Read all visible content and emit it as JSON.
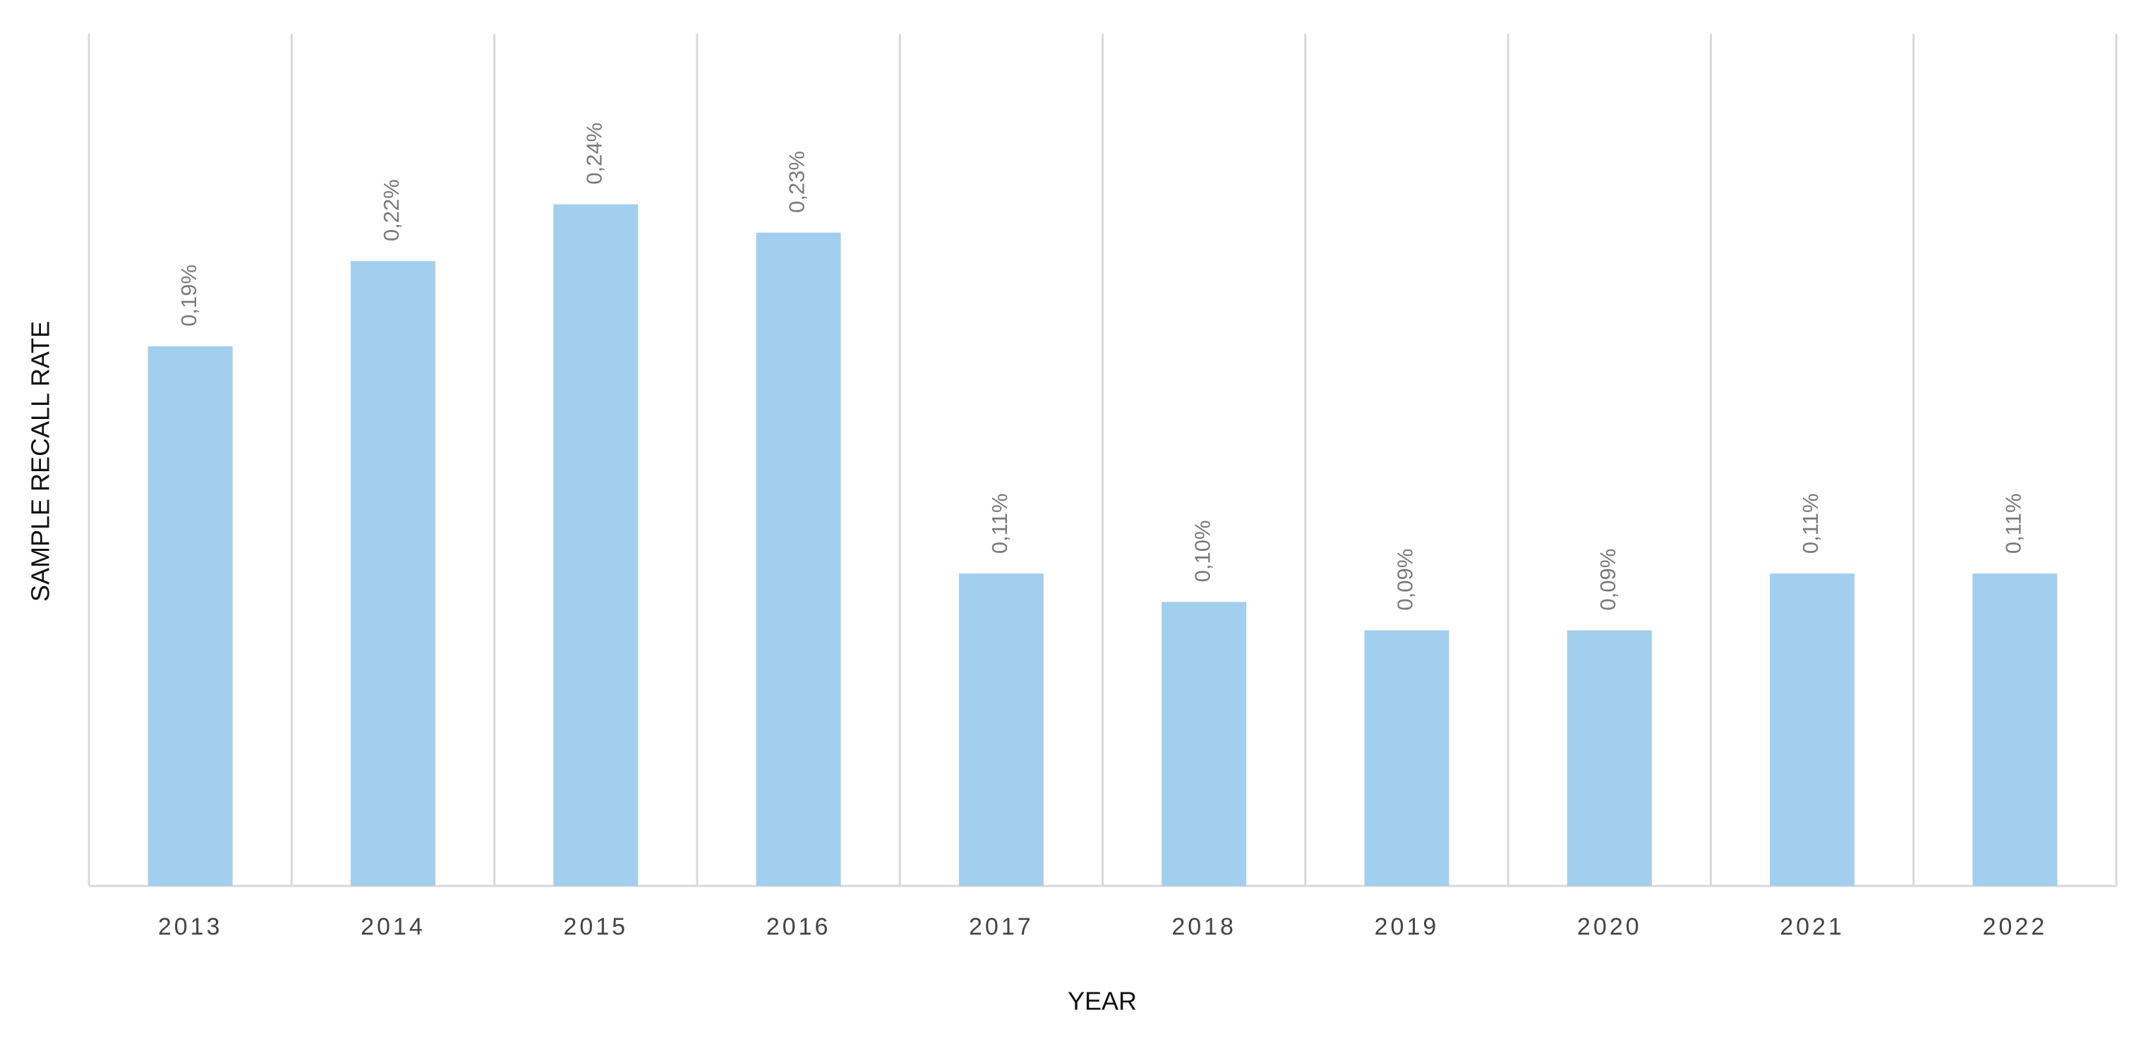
{
  "chart_data": {
    "type": "bar",
    "x_label": "YEAR",
    "y_label": "SAMPLE RECALL RATE",
    "categories": [
      "2013",
      "2014",
      "2015",
      "2016",
      "2017",
      "2018",
      "2019",
      "2020",
      "2021",
      "2022"
    ],
    "values": [
      0.19,
      0.22,
      0.24,
      0.23,
      0.11,
      0.1,
      0.09,
      0.09,
      0.11,
      0.11
    ],
    "value_labels": [
      "0,19%",
      "0,22%",
      "0,24%",
      "0,23%",
      "0,11%",
      "0,10%",
      "0,09%",
      "0,09%",
      "0,11%",
      "0,11%"
    ],
    "color": "#a3cfee",
    "ylim": [
      0,
      0.3
    ]
  }
}
